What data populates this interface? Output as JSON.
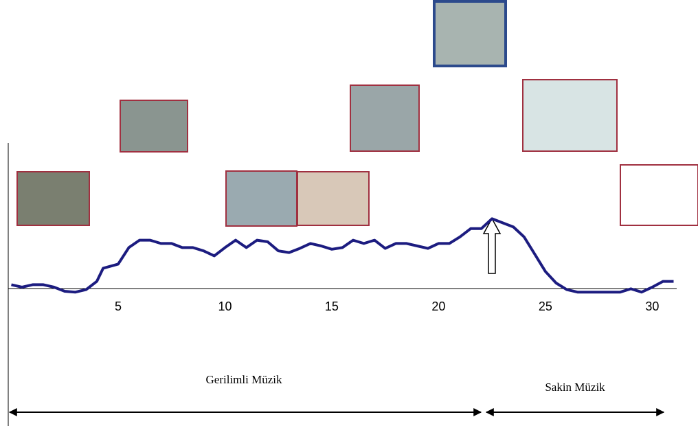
{
  "chart_data": {
    "type": "line",
    "x": [
      0,
      0.5,
      1,
      1.5,
      2,
      2.5,
      3,
      3.5,
      4,
      4.3,
      5,
      5.5,
      6,
      6.5,
      7,
      7.5,
      8,
      8.5,
      9,
      9.5,
      10,
      10.5,
      11,
      11.5,
      12,
      12.5,
      13,
      13.5,
      14,
      14.5,
      15,
      15.5,
      16,
      16.5,
      17,
      17.5,
      18,
      18.5,
      19,
      19.5,
      20,
      20.5,
      21,
      21.5,
      22,
      22.5,
      23,
      23.5,
      24,
      24.5,
      25,
      25.5,
      26,
      26.5,
      27,
      28,
      28.5,
      29,
      29.5,
      30,
      30.5,
      31
    ],
    "series": [
      {
        "color": "#1c1c80",
        "values": [
          1.3,
          1.0,
          1.3,
          1.3,
          1.0,
          0.5,
          0.4,
          0.7,
          1.7,
          3.3,
          3.8,
          5.8,
          6.7,
          6.7,
          6.3,
          6.3,
          5.8,
          5.8,
          5.4,
          4.8,
          5.8,
          6.7,
          5.8,
          6.7,
          6.5,
          5.4,
          5.2,
          5.7,
          6.3,
          6.0,
          5.6,
          5.8,
          6.7,
          6.3,
          6.7,
          5.7,
          6.3,
          6.3,
          6.0,
          5.7,
          6.3,
          6.3,
          7.1,
          8.1,
          8.1,
          9.3,
          8.8,
          8.3,
          7.1,
          5.0,
          2.9,
          1.5,
          0.7,
          0.4,
          0.4,
          0.4,
          0.4,
          0.8,
          0.4,
          1.0,
          1.7,
          1.7
        ]
      }
    ],
    "xlim": [
      0,
      31
    ],
    "ylim": [
      0,
      10
    ],
    "xticks": [
      5,
      10,
      15,
      20,
      25,
      30
    ],
    "annotations": [
      "Gerilimli Müzik",
      "Sakin Müzik"
    ]
  }
}
